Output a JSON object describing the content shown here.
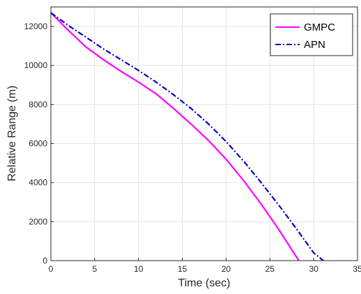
{
  "chart_data": {
    "type": "line",
    "title": "",
    "xlabel": "Time (sec)",
    "ylabel": "Relative Range (m)",
    "xlim": [
      0,
      35
    ],
    "ylim": [
      0,
      13000
    ],
    "xticks": [
      0,
      5,
      10,
      15,
      20,
      25,
      30,
      35
    ],
    "yticks": [
      0,
      2000,
      4000,
      6000,
      8000,
      10000,
      12000
    ],
    "grid": true,
    "legend_position": "top-right",
    "series": [
      {
        "name": "GMPC",
        "color": "#ff00ff",
        "line_style": "solid",
        "x": [
          0,
          2,
          4,
          6,
          8,
          10,
          12,
          14,
          16,
          18,
          20,
          22,
          24,
          26,
          28.3
        ],
        "y": [
          12700,
          11800,
          10950,
          10300,
          9700,
          9150,
          8550,
          7800,
          7000,
          6150,
          5200,
          4100,
          2900,
          1600,
          0
        ]
      },
      {
        "name": "APN",
        "color": "#0000cc",
        "line_style": "dashdot",
        "x": [
          0,
          2,
          4,
          6,
          8,
          10,
          12,
          14,
          16,
          18,
          20,
          22,
          24,
          26,
          28,
          30,
          31.1
        ],
        "y": [
          12700,
          12050,
          11450,
          10850,
          10300,
          9750,
          9150,
          8500,
          7800,
          7000,
          6100,
          5100,
          4000,
          2850,
          1650,
          400,
          0
        ]
      }
    ]
  }
}
